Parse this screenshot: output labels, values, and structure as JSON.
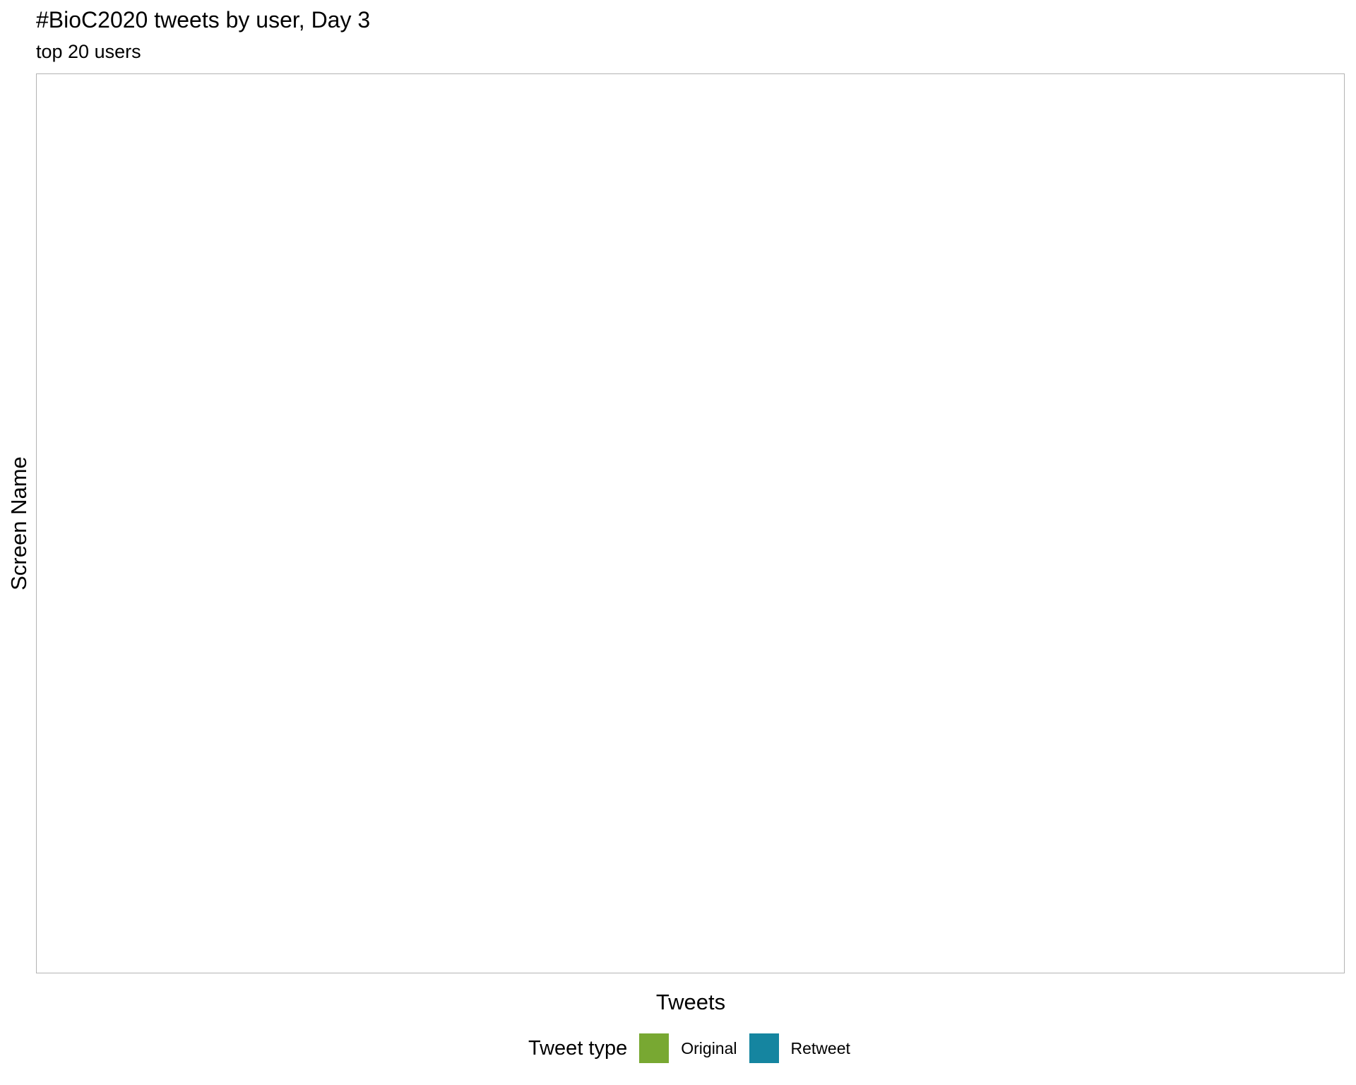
{
  "chart_data": {
    "type": "bar",
    "title": "#BioC2020 tweets by user, Day 3",
    "subtitle": "top 20 users",
    "xlabel": "Tweets",
    "ylabel": "Screen Name",
    "orientation": "horizontal",
    "stacked": true,
    "categories": [],
    "series": [
      {
        "name": "Original",
        "values": []
      },
      {
        "name": "Retweet",
        "values": []
      }
    ],
    "grid": false,
    "legend": {
      "title": "Tweet type",
      "position": "bottom",
      "entries": [
        {
          "label": "Original",
          "color": "#78a832"
        },
        {
          "label": "Retweet",
          "color": "#1585a0"
        }
      ]
    }
  }
}
